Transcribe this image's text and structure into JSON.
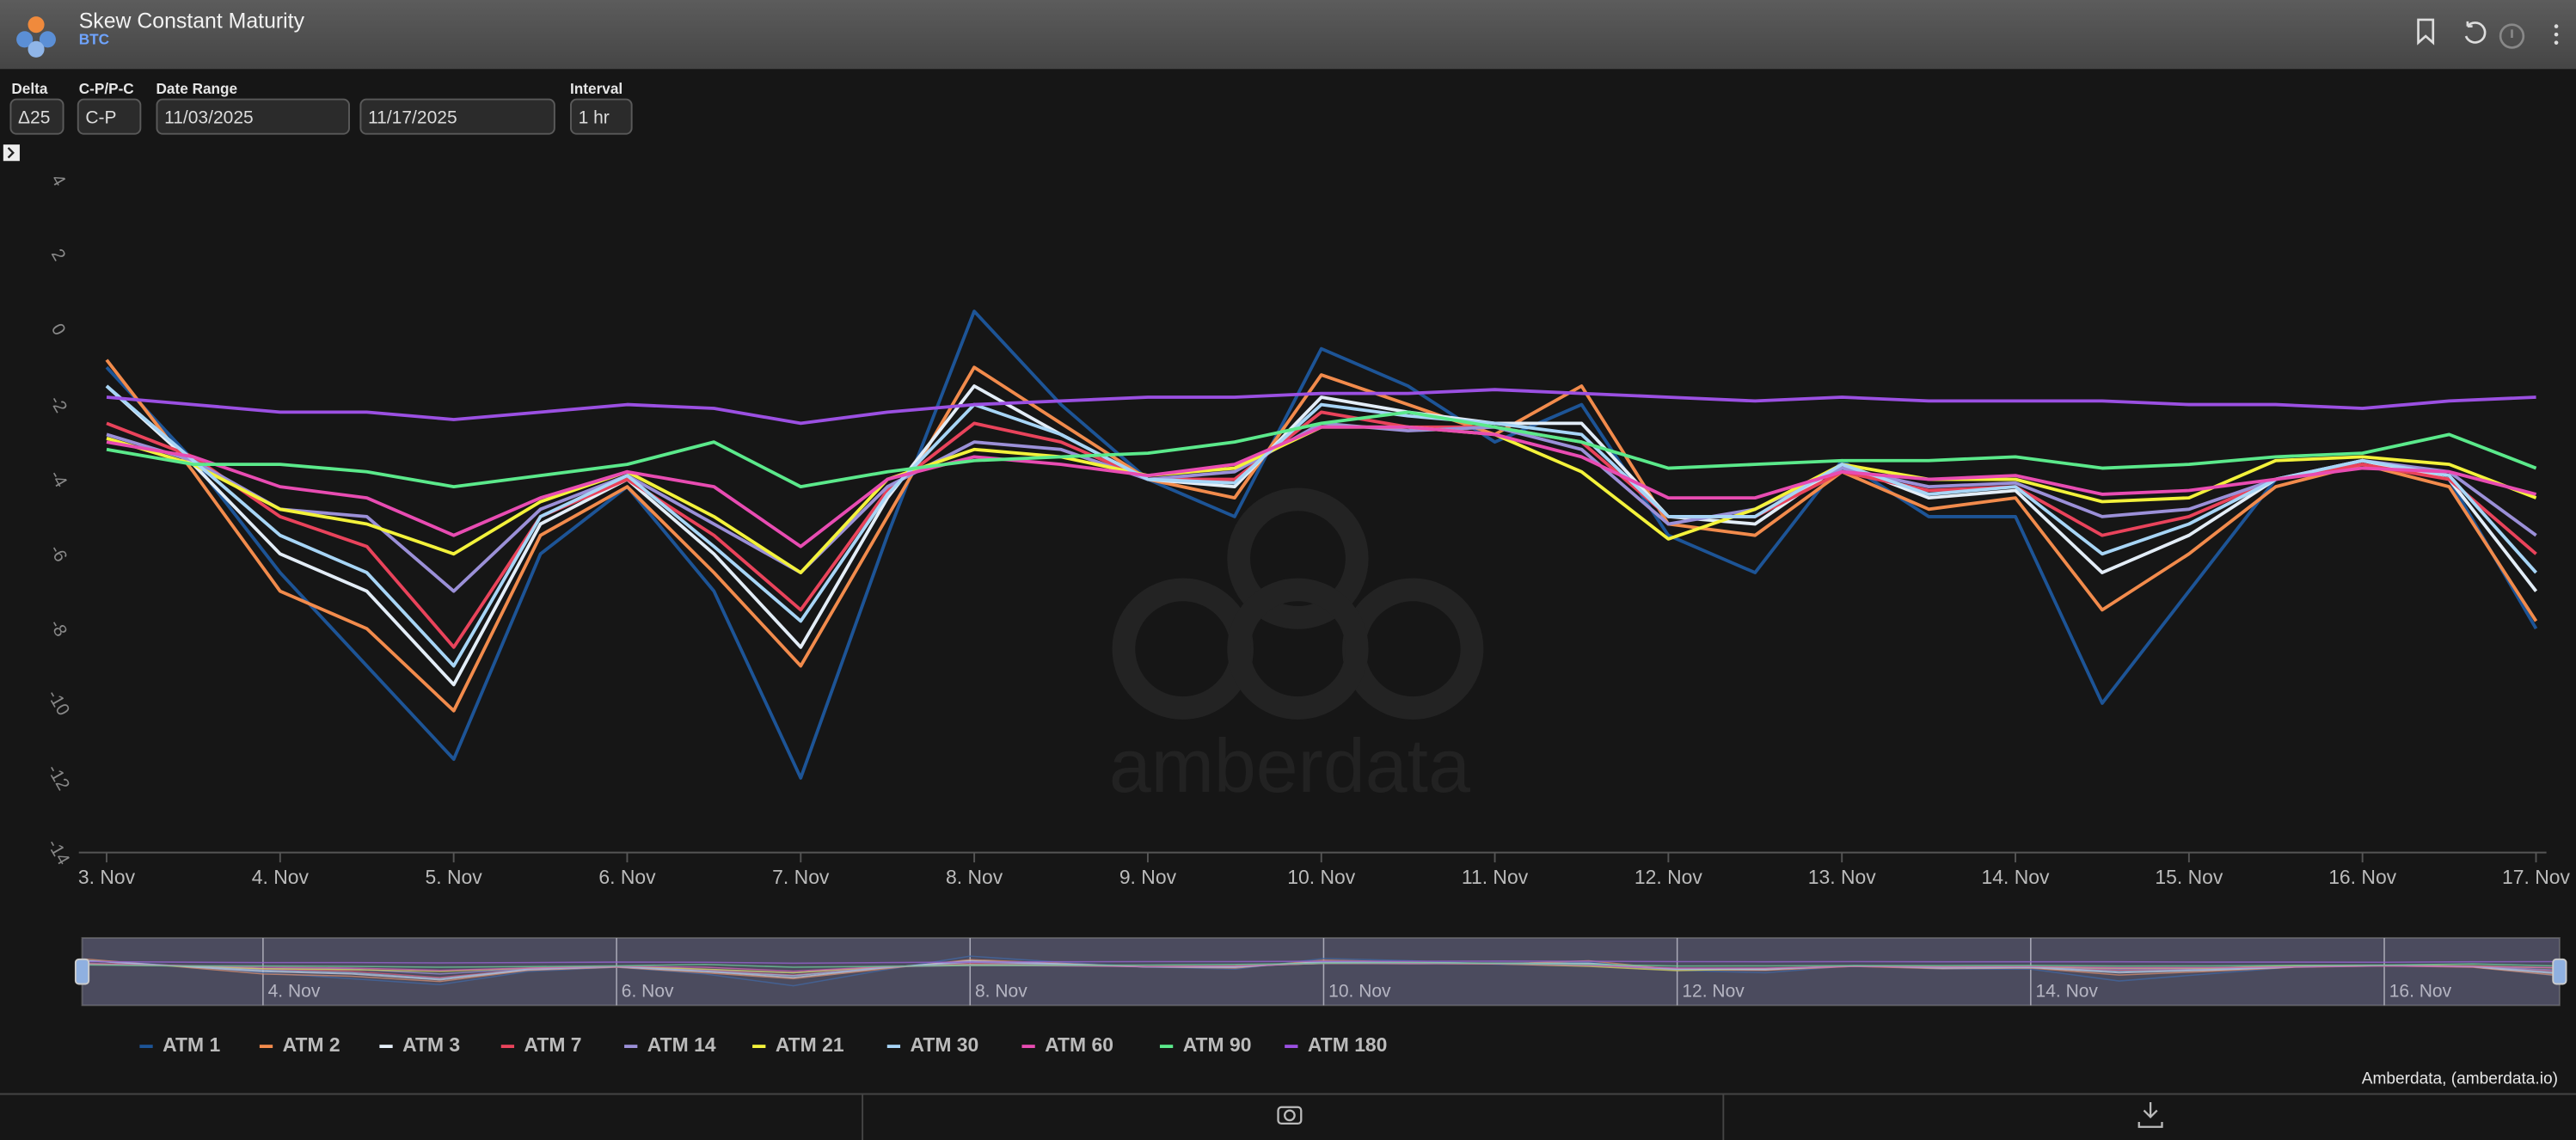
{
  "header": {
    "title": "Skew Constant Maturity",
    "subtitle": "BTC"
  },
  "controls": {
    "delta": {
      "label": "Delta",
      "value": "Δ25"
    },
    "mode": {
      "label": "C-P/P-C",
      "value": "C-P"
    },
    "date_range": {
      "label": "Date Range",
      "start": "11/03/2025",
      "end": "11/17/2025"
    },
    "interval": {
      "label": "Interval",
      "value": "1 hr"
    }
  },
  "watermark": "amberdata",
  "credit": "Amberdata, (amberdata.io)",
  "chart_data": {
    "type": "line",
    "x": [
      3,
      3.5,
      4,
      4.5,
      5,
      5.5,
      6,
      6.5,
      7,
      7.5,
      8,
      8.5,
      9,
      9.5,
      10,
      10.5,
      11,
      11.5,
      12,
      12.5,
      13,
      13.5,
      14,
      14.5,
      15,
      15.5,
      16,
      16.5,
      17
    ],
    "xlim": [
      2.84,
      17.06
    ],
    "xticks": [
      {
        "value": 3,
        "label": "3. Nov"
      },
      {
        "value": 4,
        "label": "4. Nov"
      },
      {
        "value": 5,
        "label": "5. Nov"
      },
      {
        "value": 6,
        "label": "6. Nov"
      },
      {
        "value": 7,
        "label": "7. Nov"
      },
      {
        "value": 8,
        "label": "8. Nov"
      },
      {
        "value": 9,
        "label": "9. Nov"
      },
      {
        "value": 10,
        "label": "10. Nov"
      },
      {
        "value": 11,
        "label": "11. Nov"
      },
      {
        "value": 12,
        "label": "12. Nov"
      },
      {
        "value": 13,
        "label": "13. Nov"
      },
      {
        "value": 14,
        "label": "14. Nov"
      },
      {
        "value": 15,
        "label": "15. Nov"
      },
      {
        "value": 16,
        "label": "16. Nov"
      },
      {
        "value": 17,
        "label": "17. Nov"
      }
    ],
    "navigator_xticks": [
      {
        "value": 4,
        "label": "4. Nov"
      },
      {
        "value": 6,
        "label": "6. Nov"
      },
      {
        "value": 8,
        "label": "8. Nov"
      },
      {
        "value": 10,
        "label": "10. Nov"
      },
      {
        "value": 12,
        "label": "12. Nov"
      },
      {
        "value": 14,
        "label": "14. Nov"
      },
      {
        "value": 16,
        "label": "16. Nov"
      }
    ],
    "ylim": [
      -14,
      4
    ],
    "yticks": [
      4,
      2,
      0,
      -2,
      -4,
      -6,
      -8,
      -10,
      -12,
      -14
    ],
    "grid": false,
    "legend": "bottom-left",
    "series": [
      {
        "name": "ATM 1",
        "color": "#1d5496",
        "values": [
          -1.0,
          -3.5,
          -6.5,
          -9.0,
          -11.5,
          -6.0,
          -4.2,
          -7.0,
          -12.0,
          -5.5,
          0.5,
          -2.0,
          -4.0,
          -5.0,
          -0.5,
          -1.5,
          -3.0,
          -2.0,
          -5.5,
          -6.5,
          -3.5,
          -5.0,
          -5.0,
          -10.0,
          -7.0,
          -4.0,
          -3.5,
          -4.0,
          -8.0
        ]
      },
      {
        "name": "ATM 2",
        "color": "#f28b4c",
        "values": [
          -0.8,
          -3.8,
          -7.0,
          -8.0,
          -10.2,
          -5.5,
          -4.2,
          -6.5,
          -9.0,
          -5.0,
          -1.0,
          -2.5,
          -4.0,
          -4.5,
          -1.2,
          -2.0,
          -2.8,
          -1.5,
          -5.2,
          -5.5,
          -3.8,
          -4.8,
          -4.5,
          -7.5,
          -6.0,
          -4.2,
          -3.6,
          -4.2,
          -7.8
        ]
      },
      {
        "name": "ATM 3",
        "color": "#e3edf7",
        "values": [
          -1.5,
          -3.6,
          -6.0,
          -7.0,
          -9.5,
          -5.2,
          -4.0,
          -6.0,
          -8.5,
          -4.5,
          -1.5,
          -2.8,
          -4.0,
          -4.2,
          -1.8,
          -2.2,
          -2.5,
          -2.5,
          -5.0,
          -5.2,
          -3.6,
          -4.5,
          -4.3,
          -6.5,
          -5.5,
          -4.0,
          -3.5,
          -4.0,
          -7.0
        ]
      },
      {
        "name": "ATM 7",
        "color": "#e9435b",
        "values": [
          -2.5,
          -3.4,
          -5.0,
          -5.8,
          -8.5,
          -5.0,
          -4.0,
          -5.5,
          -7.5,
          -4.3,
          -2.5,
          -3.0,
          -4.0,
          -4.0,
          -2.2,
          -2.6,
          -2.6,
          -3.0,
          -5.0,
          -5.0,
          -3.8,
          -4.3,
          -4.2,
          -5.5,
          -5.0,
          -4.0,
          -3.6,
          -4.0,
          -6.0
        ]
      },
      {
        "name": "ATM 14",
        "color": "#9b90d8",
        "values": [
          -2.8,
          -3.5,
          -4.8,
          -5.0,
          -7.0,
          -4.8,
          -3.9,
          -5.2,
          -6.5,
          -4.2,
          -3.0,
          -3.2,
          -4.0,
          -3.8,
          -2.5,
          -2.7,
          -2.6,
          -3.2,
          -5.2,
          -4.8,
          -3.7,
          -4.2,
          -4.1,
          -5.0,
          -4.8,
          -4.0,
          -3.5,
          -3.8,
          -5.5
        ]
      },
      {
        "name": "ATM 21",
        "color": "#f3f23b",
        "values": [
          -2.9,
          -3.6,
          -4.8,
          -5.2,
          -6.0,
          -4.6,
          -3.8,
          -5.0,
          -6.5,
          -4.0,
          -3.2,
          -3.4,
          -3.9,
          -3.7,
          -2.6,
          -2.6,
          -2.8,
          -3.8,
          -5.6,
          -4.8,
          -3.6,
          -4.0,
          -4.0,
          -4.6,
          -4.5,
          -3.5,
          -3.4,
          -3.6,
          -4.5
        ]
      },
      {
        "name": "ATM 30",
        "color": "#a7d5f6",
        "values": [
          -1.5,
          -3.5,
          -5.5,
          -6.5,
          -9.0,
          -5.0,
          -3.9,
          -5.8,
          -7.8,
          -4.4,
          -2.0,
          -2.8,
          -4.0,
          -4.1,
          -2.0,
          -2.3,
          -2.5,
          -2.8,
          -5.0,
          -5.0,
          -3.6,
          -4.4,
          -4.2,
          -6.0,
          -5.2,
          -4.0,
          -3.5,
          -3.9,
          -6.5
        ]
      },
      {
        "name": "ATM 60",
        "color": "#e84cb2",
        "values": [
          -3.0,
          -3.4,
          -4.2,
          -4.5,
          -5.5,
          -4.5,
          -3.8,
          -4.2,
          -5.8,
          -4.0,
          -3.4,
          -3.6,
          -3.9,
          -3.6,
          -2.6,
          -2.6,
          -2.8,
          -3.4,
          -4.5,
          -4.5,
          -3.8,
          -4.0,
          -3.9,
          -4.4,
          -4.3,
          -4.0,
          -3.7,
          -3.8,
          -4.4
        ]
      },
      {
        "name": "ATM 90",
        "color": "#5be98b",
        "values": [
          -3.2,
          -3.6,
          -3.6,
          -3.8,
          -4.2,
          -3.9,
          -3.6,
          -3.0,
          -4.2,
          -3.8,
          -3.5,
          -3.4,
          -3.3,
          -3.0,
          -2.5,
          -2.2,
          -2.6,
          -3.0,
          -3.7,
          -3.6,
          -3.5,
          -3.5,
          -3.4,
          -3.7,
          -3.6,
          -3.4,
          -3.3,
          -2.8,
          -3.7
        ]
      },
      {
        "name": "ATM 180",
        "color": "#9b50e2",
        "values": [
          -1.8,
          -2.0,
          -2.2,
          -2.2,
          -2.4,
          -2.2,
          -2.0,
          -2.1,
          -2.5,
          -2.2,
          -2.0,
          -1.9,
          -1.8,
          -1.8,
          -1.7,
          -1.7,
          -1.6,
          -1.7,
          -1.8,
          -1.9,
          -1.8,
          -1.9,
          -1.9,
          -1.9,
          -2.0,
          -2.0,
          -2.1,
          -1.9,
          -1.8
        ]
      }
    ]
  }
}
